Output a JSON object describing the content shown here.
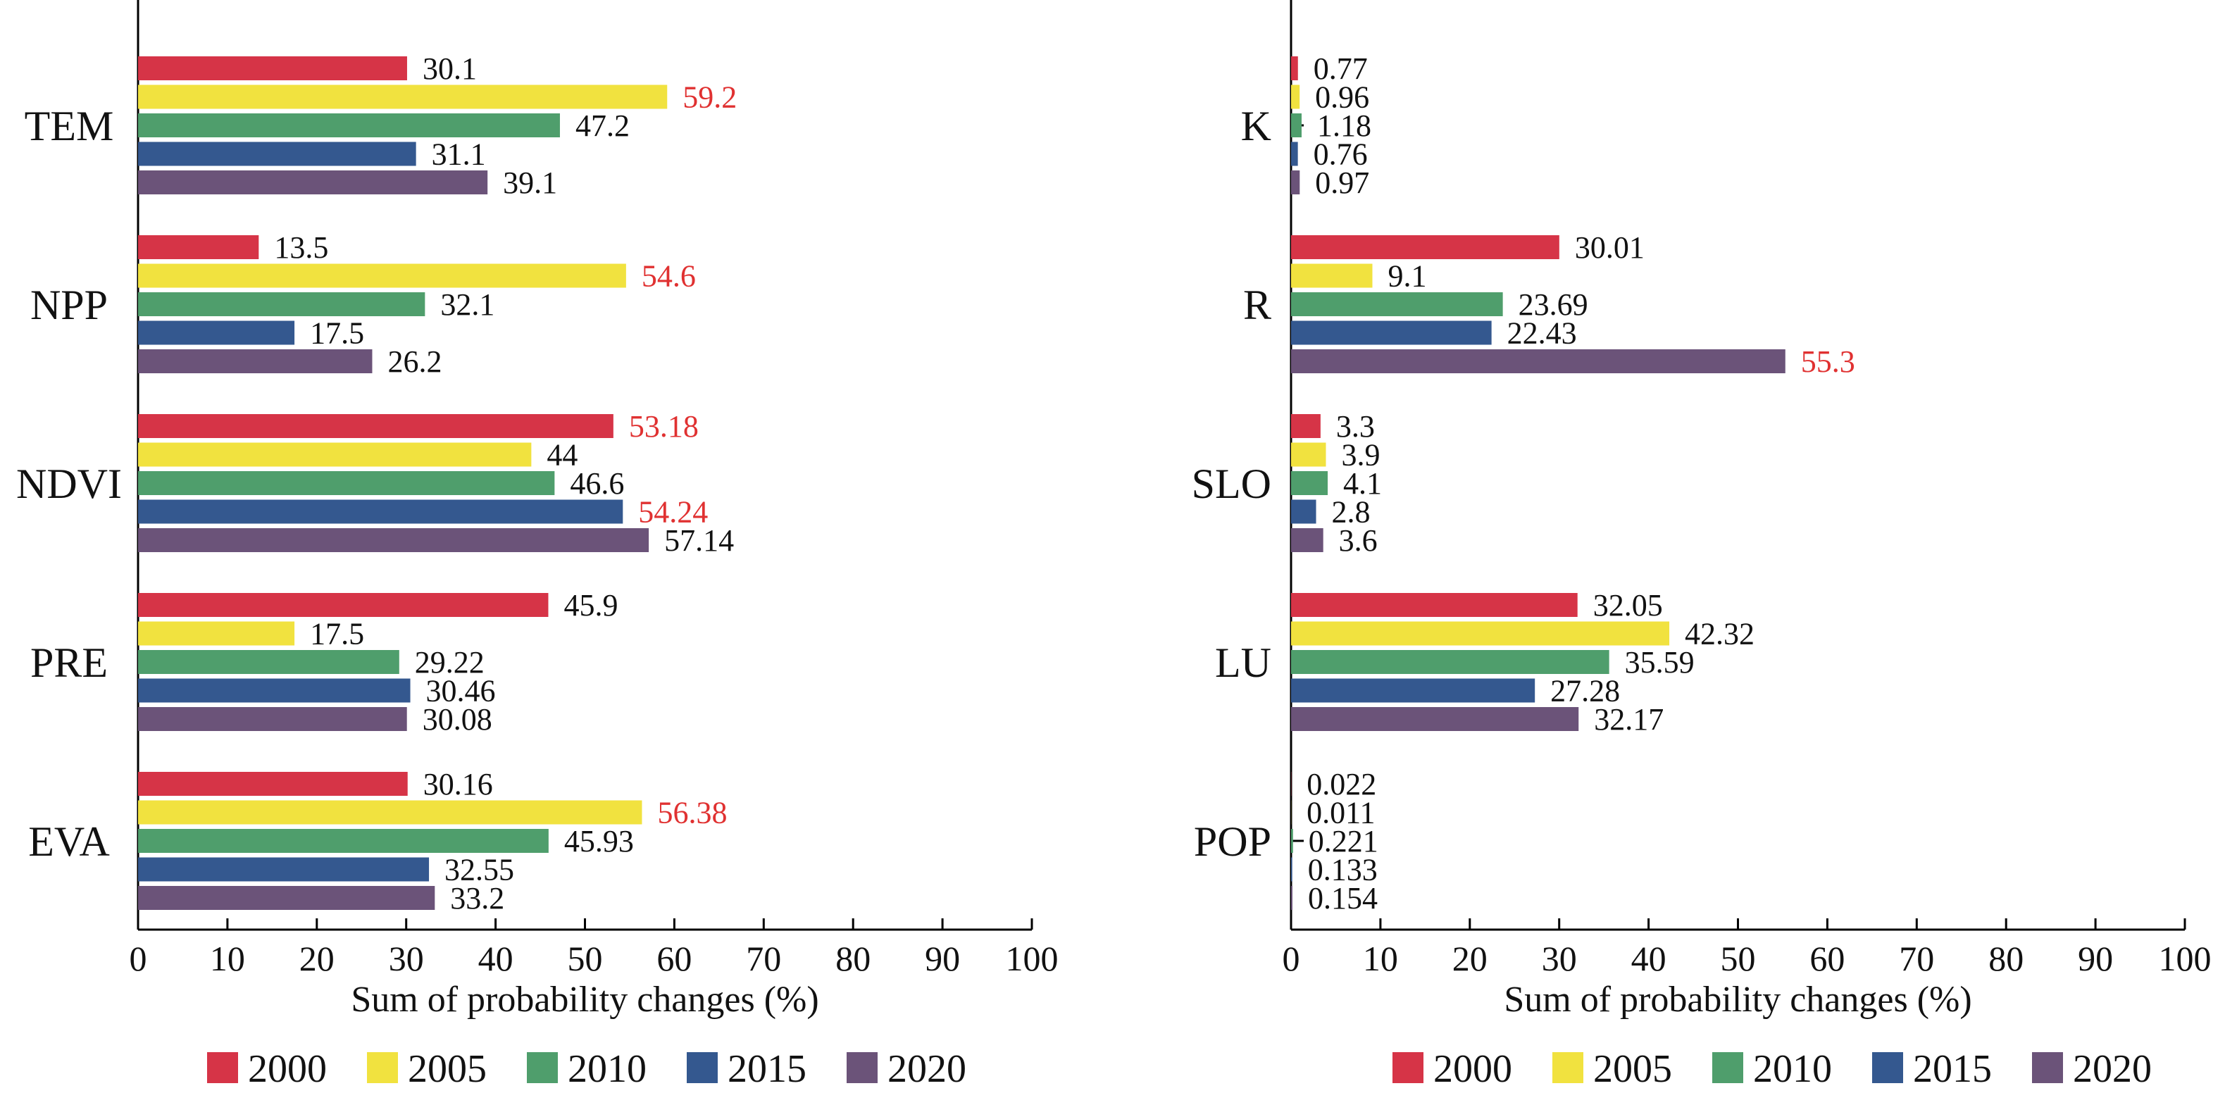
{
  "colors": {
    "series": [
      "#d63447",
      "#f1e23f",
      "#4f9e6c",
      "#34588f",
      "#6b5379"
    ],
    "highlight": "#e03131",
    "axis": "#000000"
  },
  "chart_data": [
    {
      "type": "bar",
      "orientation": "horizontal",
      "title": "",
      "xlabel": "Sum of probability changes (%)",
      "ylabel": "",
      "xlim": [
        0,
        100
      ],
      "xticks": [
        "0",
        "10",
        "20",
        "30",
        "40",
        "50",
        "60",
        "70",
        "80",
        "90",
        "100"
      ],
      "grid": false,
      "legend_position": "bottom",
      "categories": [
        "TEM",
        "NPP",
        "NDVI",
        "PRE",
        "EVA"
      ],
      "series": [
        {
          "name": "2000",
          "values": [
            30.1,
            13.5,
            53.18,
            45.9,
            30.16
          ],
          "labels": [
            "30.1",
            "13.5",
            "53.18",
            "45.9",
            "30.16"
          ]
        },
        {
          "name": "2005",
          "values": [
            59.2,
            54.6,
            44,
            17.5,
            56.38
          ],
          "labels": [
            "59.2",
            "54.6",
            "44",
            "17.5",
            "56.38"
          ]
        },
        {
          "name": "2010",
          "values": [
            47.2,
            32.1,
            46.6,
            29.22,
            45.93
          ],
          "labels": [
            "47.2",
            "32.1",
            "46.6",
            "29.22",
            "45.93"
          ]
        },
        {
          "name": "2015",
          "values": [
            31.1,
            17.5,
            54.24,
            30.46,
            32.55
          ],
          "labels": [
            "31.1",
            "17.5",
            "54.24",
            "30.46",
            "32.55"
          ]
        },
        {
          "name": "2020",
          "values": [
            39.1,
            26.2,
            57.14,
            30.08,
            33.2
          ],
          "labels": [
            "39.1",
            "26.2",
            "57.14",
            "30.08",
            "33.2"
          ]
        }
      ],
      "highlighted_labels": [
        [
          0,
          1
        ],
        [
          1,
          1
        ],
        [
          2,
          0
        ],
        [
          2,
          3
        ],
        [
          4,
          1
        ]
      ]
    },
    {
      "type": "bar",
      "orientation": "horizontal",
      "title": "",
      "xlabel": "Sum of probability changes (%)",
      "ylabel": "",
      "xlim": [
        0,
        100
      ],
      "xticks": [
        "0",
        "10",
        "20",
        "30",
        "40",
        "50",
        "60",
        "70",
        "80",
        "90",
        "100"
      ],
      "grid": false,
      "legend_position": "bottom",
      "categories": [
        "K",
        "R",
        "SLO",
        "LU",
        "POP"
      ],
      "series": [
        {
          "name": "2000",
          "values": [
            0.77,
            30.01,
            3.3,
            32.05,
            0.022
          ],
          "labels": [
            "0.77",
            "30.01",
            "3.3",
            "32.05",
            "0.022"
          ]
        },
        {
          "name": "2005",
          "values": [
            0.96,
            9.1,
            3.9,
            42.32,
            0.011
          ],
          "labels": [
            "0.96",
            "9.1",
            "3.9",
            "42.32",
            "0.011"
          ]
        },
        {
          "name": "2010",
          "values": [
            1.18,
            23.69,
            4.1,
            35.59,
            0.221
          ],
          "labels": [
            "1.18",
            "23.69",
            "4.1",
            "35.59",
            "0.221"
          ]
        },
        {
          "name": "2015",
          "values": [
            0.76,
            22.43,
            2.8,
            27.28,
            0.133
          ],
          "labels": [
            "0.76",
            "22.43",
            "2.8",
            "27.28",
            "0.133"
          ]
        },
        {
          "name": "2020",
          "values": [
            0.97,
            55.3,
            3.6,
            32.17,
            0.154
          ],
          "labels": [
            "0.97",
            "55.3",
            "3.6",
            "32.17",
            "0.154"
          ]
        }
      ],
      "highlighted_labels": [
        [
          1,
          4
        ]
      ]
    }
  ]
}
